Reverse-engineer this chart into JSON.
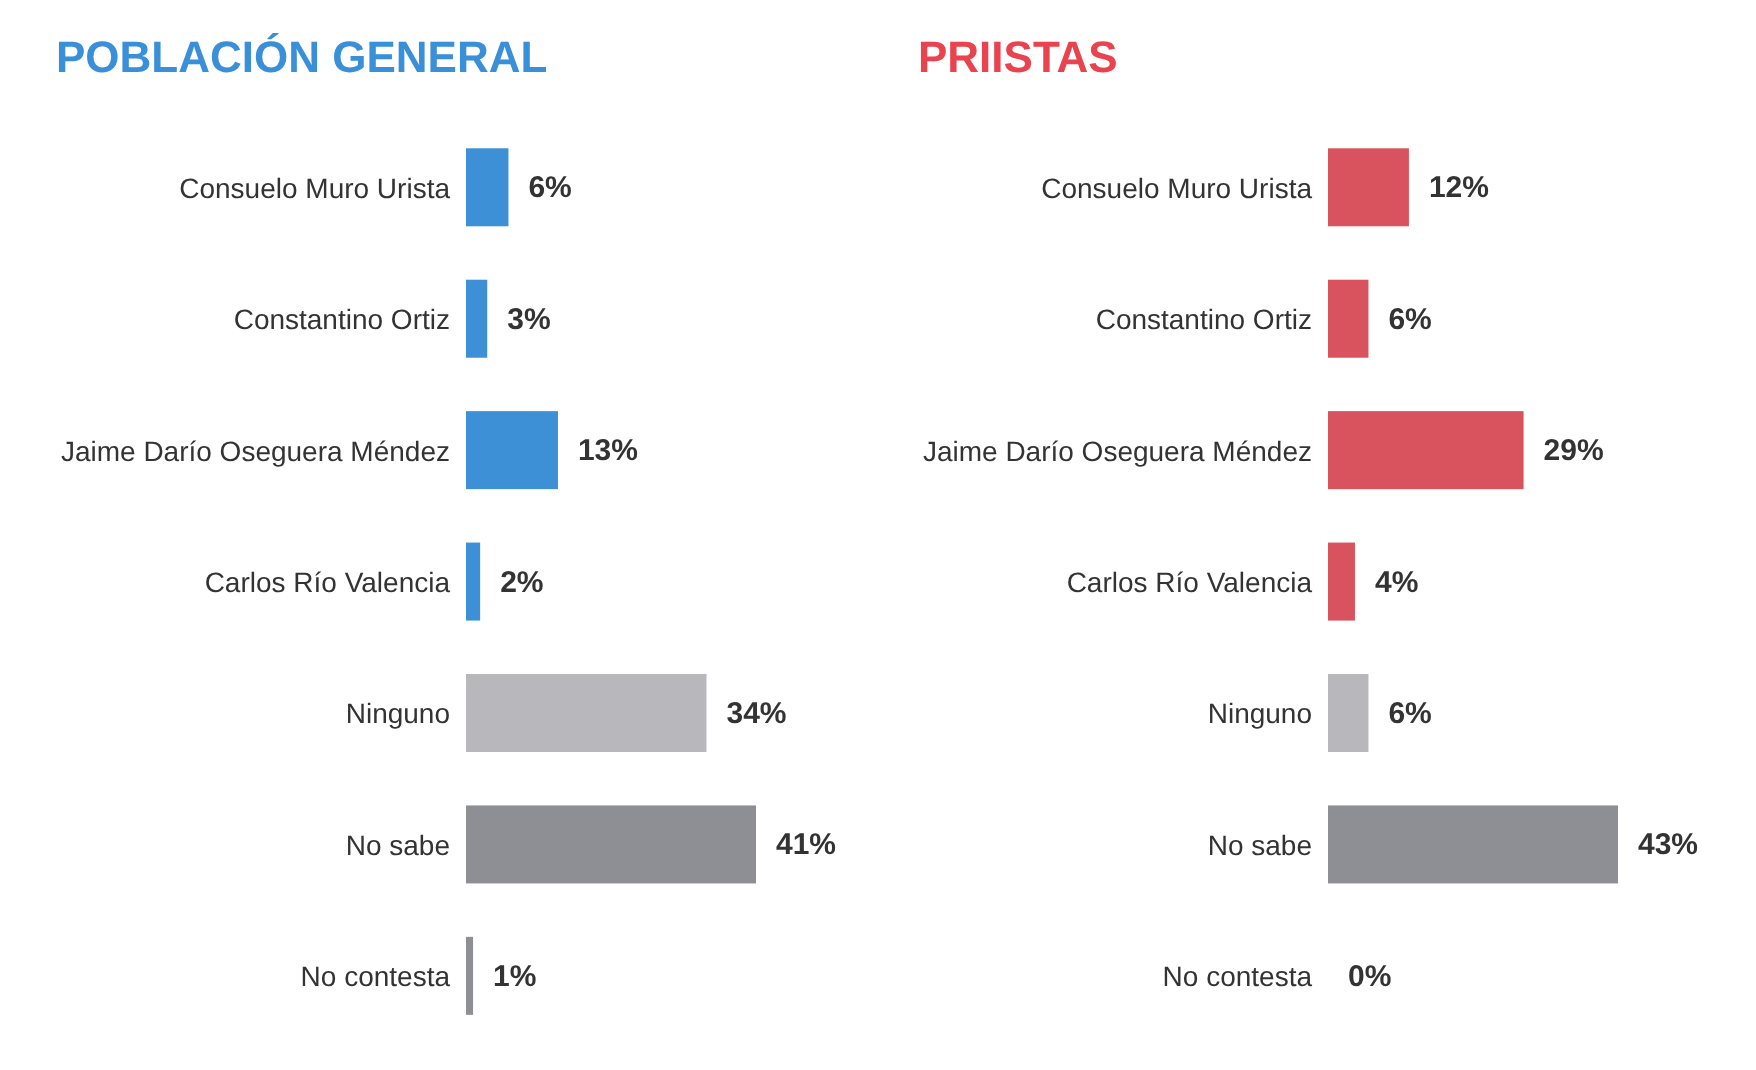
{
  "chart_data": [
    {
      "type": "bar",
      "orientation": "horizontal",
      "title": "POBLACIÓN GENERAL",
      "categories": [
        "Consuelo Muro Urista",
        "Constantino Ortiz",
        "Jaime Darío Oseguera Méndez",
        "Carlos Río Valencia",
        "Ninguno",
        "No sabe",
        "No contesta"
      ],
      "values": [
        6,
        3,
        13,
        2,
        34,
        41,
        1
      ],
      "colors": [
        "#3d8fd6",
        "#3d8fd6",
        "#3d8fd6",
        "#3d8fd6",
        "#b8b8bc",
        "#8e8f94",
        "#8e8f94"
      ],
      "value_labels": [
        "6%",
        "3%",
        "13%",
        "2%",
        "34%",
        "41%",
        "1%"
      ]
    },
    {
      "type": "bar",
      "orientation": "horizontal",
      "title": "PRIISTAS",
      "categories": [
        "Consuelo Muro Urista",
        "Constantino Ortiz",
        "Jaime Darío Oseguera Méndez",
        "Carlos Río Valencia",
        "Ninguno",
        "No sabe",
        "No contesta"
      ],
      "values": [
        12,
        6,
        29,
        4,
        6,
        43,
        0
      ],
      "colors": [
        "#d9535e",
        "#d9535e",
        "#d9535e",
        "#d9535e",
        "#b8b8bc",
        "#8e8f94",
        "#8e8f94"
      ],
      "value_labels": [
        "12%",
        "6%",
        "29%",
        "4%",
        "6%",
        "43%",
        "0%"
      ]
    }
  ]
}
